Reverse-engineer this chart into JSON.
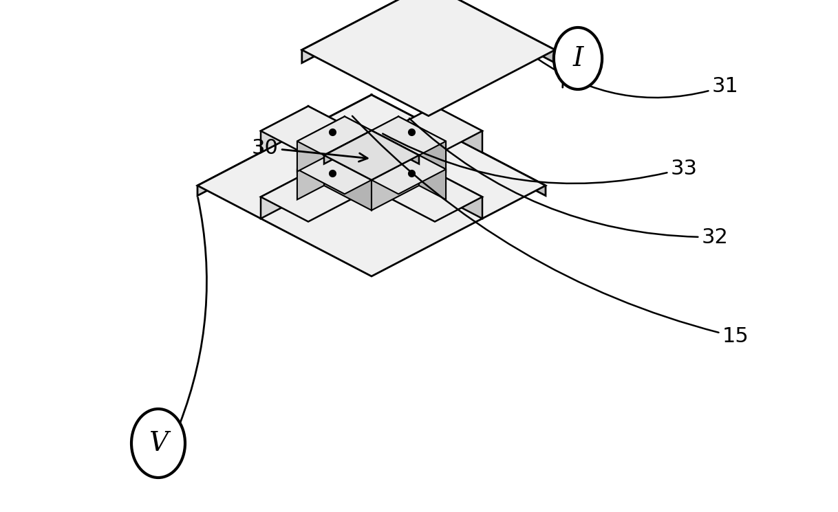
{
  "background_color": "#ffffff",
  "line_color": "#000000",
  "line_width": 1.8,
  "figsize": [
    12.18,
    7.45
  ],
  "dpi": 100,
  "top_face_color": "#f2f2f2",
  "side_face_color": "#cccccc",
  "front_face_color": "#e0e0e0",
  "strip_top_color": "#e8e8e8",
  "strip_side_color": "#bbbbbb",
  "center_top_color": "#dcdcdc",
  "pad_top_color": "#e4e4e4"
}
